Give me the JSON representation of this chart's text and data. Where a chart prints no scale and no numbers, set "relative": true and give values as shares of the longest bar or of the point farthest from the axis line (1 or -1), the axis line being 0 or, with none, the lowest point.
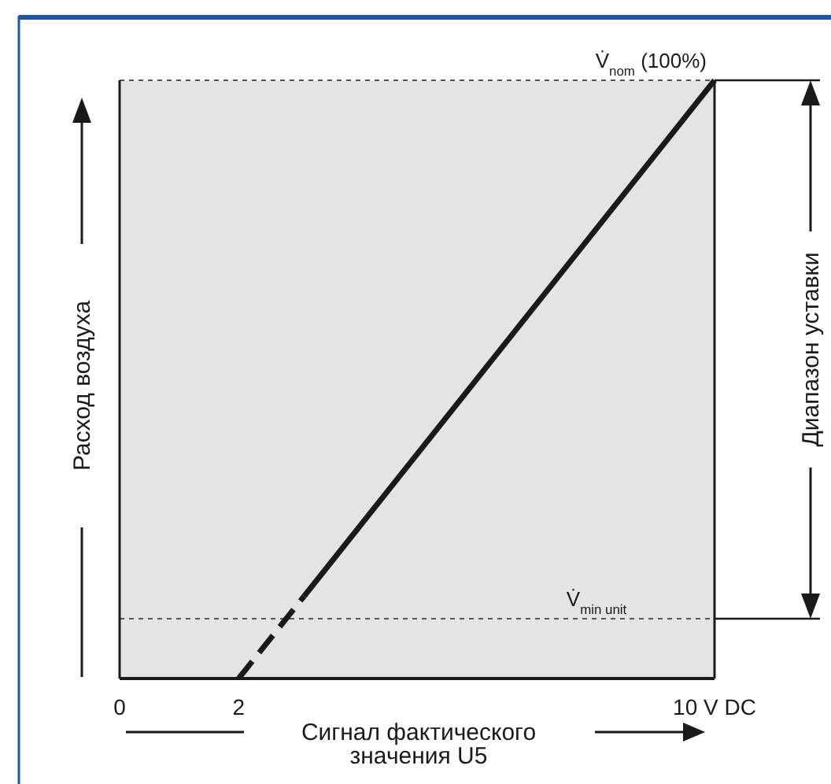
{
  "chart_data": {
    "type": "line",
    "relative": true,
    "xlabel": "Сигнал фактического\nзначения U5",
    "ylabel": "Расход воздуха",
    "xlim": [
      0,
      10
    ],
    "xticks": [
      0,
      2,
      {
        "value": 10,
        "label": "10 V DC"
      }
    ],
    "series": [
      {
        "color": "#1a1a1a",
        "line_style": "dashed",
        "x": [
          2,
          3.1
        ],
        "values": [
          0,
          0.1375
        ]
      },
      {
        "color": "#1a1a1a",
        "line_style": "solid",
        "x": [
          3.1,
          10
        ],
        "values": [
          0.1375,
          1
        ]
      }
    ],
    "ref_lines": [
      {
        "axis": "y",
        "value": 1,
        "label": "V̇$_{nom}$ (100%)",
        "line_style": "dotted",
        "color": "#555555"
      },
      {
        "axis": "y",
        "value": 0.1,
        "label": "V̇$_{min unit}$",
        "line_style": "dotted",
        "color": "#555555"
      }
    ],
    "annotations": [
      "Диапазон уставки"
    ],
    "grid": false
  }
}
